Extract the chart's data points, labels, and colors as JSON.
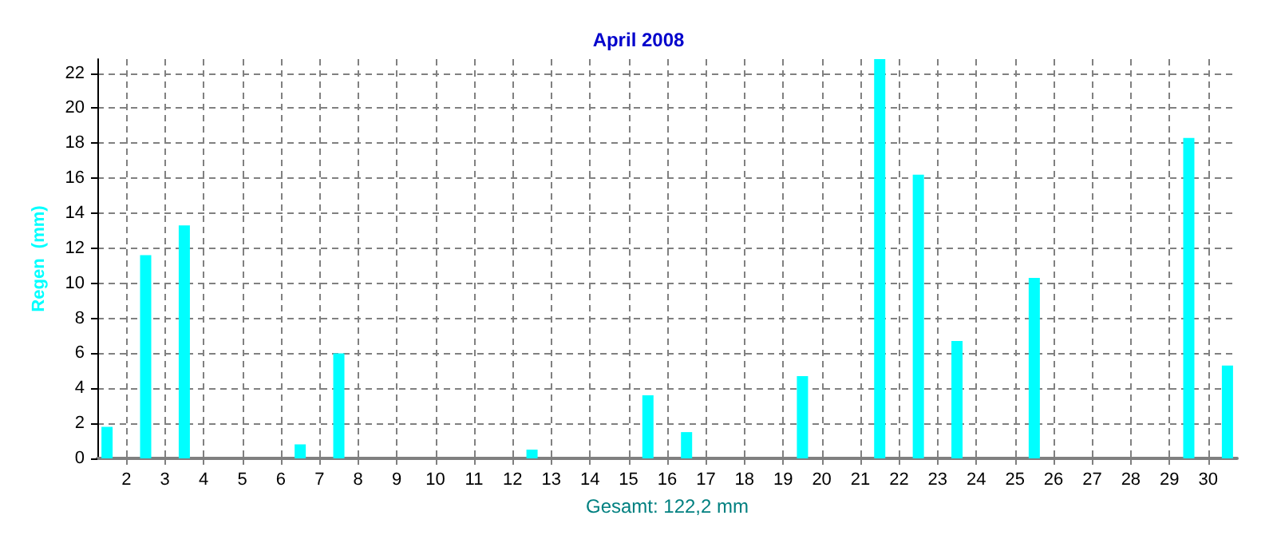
{
  "chart_data": {
    "type": "bar",
    "title": "April 2008",
    "xlabel": "Gesamt: 122,2 mm",
    "ylabel": "Regen  (mm)",
    "x": [
      1.5,
      2.5,
      3.5,
      4.5,
      5.5,
      6.5,
      7.5,
      8.5,
      9.5,
      10.5,
      11.5,
      12.5,
      13.5,
      14.5,
      15.5,
      16.5,
      17.5,
      18.5,
      19.5,
      20.5,
      21.5,
      22.5,
      23.5,
      24.5,
      25.5,
      26.5,
      27.5,
      28.5,
      29.5,
      30.5
    ],
    "values": [
      1.8,
      11.6,
      13.3,
      0,
      0,
      0.8,
      6.0,
      0,
      0,
      0,
      0,
      0.5,
      0,
      0,
      3.6,
      1.5,
      0,
      0,
      4.7,
      0,
      22.8,
      16.2,
      6.7,
      0,
      10.3,
      0,
      0,
      0,
      18.3,
      5.3
    ],
    "color": "#00ffff",
    "xlim": [
      1.25,
      30.75
    ],
    "xticks": [
      2,
      3,
      4,
      5,
      6,
      7,
      8,
      9,
      10,
      11,
      12,
      13,
      14,
      15,
      16,
      17,
      18,
      19,
      20,
      21,
      22,
      23,
      24,
      25,
      26,
      27,
      28,
      29,
      30
    ],
    "ylim": [
      0,
      22.8
    ],
    "yticks": [
      0,
      2,
      4,
      6,
      8,
      10,
      12,
      14,
      16,
      18,
      20,
      22
    ],
    "grid": true
  }
}
